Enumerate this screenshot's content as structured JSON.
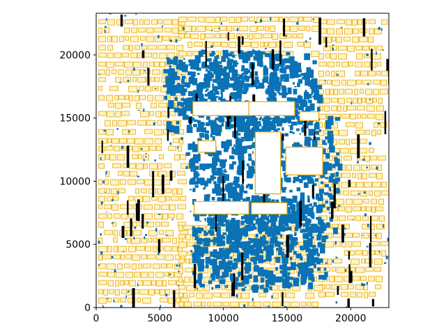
{
  "chart_data": {
    "type": "scatter",
    "title": "",
    "xlabel": "",
    "ylabel": "",
    "xlim": [
      0,
      23000
    ],
    "ylim": [
      0,
      23300
    ],
    "x_ticks": [
      0,
      5000,
      10000,
      15000,
      20000
    ],
    "y_ticks": [
      0,
      5000,
      10000,
      15000,
      20000
    ],
    "x_tick_labels": [
      "0",
      "5000",
      "10000",
      "15000",
      "20000"
    ],
    "y_tick_labels": [
      "0",
      "5000",
      "10000",
      "15000",
      "20000"
    ],
    "grid": false,
    "legend": "none",
    "colors": {
      "cells": "#e6a800",
      "cell_fill": "#fff3c4",
      "blue": "#0a72b5",
      "black": "#000000"
    },
    "blue_regions": [
      {
        "x": [
          5200,
          17500
        ],
        "y": [
          14200,
          20500
        ]
      },
      {
        "x": [
          7000,
          19000
        ],
        "y": [
          6200,
          16200
        ]
      },
      {
        "x": [
          7500,
          18000
        ],
        "y": [
          1500,
          9000
        ]
      }
    ],
    "cell_regions": [
      {
        "x": [
          200,
          7000
        ],
        "y": [
          400,
          22800
        ]
      },
      {
        "x": [
          17500,
          22800
        ],
        "y": [
          400,
          22800
        ]
      },
      {
        "x": [
          6500,
          17500
        ],
        "y": [
          0,
          6500
        ]
      },
      {
        "x": [
          6500,
          17500
        ],
        "y": [
          19500,
          23000
        ]
      }
    ]
  }
}
